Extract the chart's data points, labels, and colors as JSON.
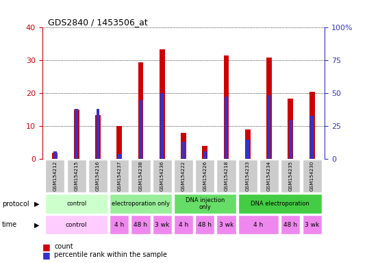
{
  "title": "GDS2840 / 1453506_at",
  "samples": [
    "GSM154212",
    "GSM154215",
    "GSM154216",
    "GSM154237",
    "GSM154238",
    "GSM154236",
    "GSM154222",
    "GSM154226",
    "GSM154218",
    "GSM154233",
    "GSM154234",
    "GSM154235",
    "GSM154230"
  ],
  "count_values": [
    2.0,
    15.0,
    13.5,
    10.0,
    29.5,
    33.5,
    8.0,
    4.0,
    31.5,
    9.0,
    31.0,
    18.5,
    20.5
  ],
  "percentile_values": [
    6.0,
    38.0,
    38.0,
    4.0,
    45.0,
    50.0,
    13.0,
    6.0,
    47.5,
    15.0,
    48.5,
    30.0,
    33.0
  ],
  "bar_color_red": "#cc0000",
  "bar_color_blue": "#3333cc",
  "ylim_left": [
    0,
    40
  ],
  "ylim_right": [
    0,
    100
  ],
  "yticks_left": [
    0,
    10,
    20,
    30,
    40
  ],
  "yticks_right": [
    0,
    25,
    50,
    75,
    100
  ],
  "ytick_labels_right": [
    "0",
    "25",
    "50",
    "75",
    "100%"
  ],
  "bg_color": "#ffffff",
  "sample_box_color": "#cccccc",
  "left_axis_color": "#cc0000",
  "right_axis_color": "#3333cc",
  "proto_groups": [
    {
      "label": "control",
      "start": 0,
      "end": 3,
      "color": "#ccffcc"
    },
    {
      "label": "electroporation only",
      "start": 3,
      "end": 6,
      "color": "#99ee99"
    },
    {
      "label": "DNA injection\nonly",
      "start": 6,
      "end": 9,
      "color": "#66dd66"
    },
    {
      "label": "DNA electroporation",
      "start": 9,
      "end": 13,
      "color": "#44cc44"
    }
  ],
  "time_groups": [
    {
      "label": "control",
      "start": 0,
      "end": 3,
      "color": "#ffccff"
    },
    {
      "label": "4 h",
      "start": 3,
      "end": 4,
      "color": "#ee88ee"
    },
    {
      "label": "48 h",
      "start": 4,
      "end": 5,
      "color": "#ee88ee"
    },
    {
      "label": "3 wk",
      "start": 5,
      "end": 6,
      "color": "#ee88ee"
    },
    {
      "label": "4 h",
      "start": 6,
      "end": 7,
      "color": "#ee88ee"
    },
    {
      "label": "48 h",
      "start": 7,
      "end": 8,
      "color": "#ee88ee"
    },
    {
      "label": "3 wk",
      "start": 8,
      "end": 9,
      "color": "#ee88ee"
    },
    {
      "label": "4 h",
      "start": 9,
      "end": 11,
      "color": "#ee88ee"
    },
    {
      "label": "48 h",
      "start": 11,
      "end": 12,
      "color": "#ee88ee"
    },
    {
      "label": "3 wk",
      "start": 12,
      "end": 13,
      "color": "#ee88ee"
    }
  ],
  "bar_width": 0.25
}
